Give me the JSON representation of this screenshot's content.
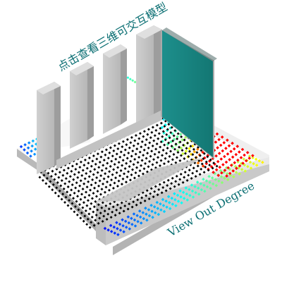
{
  "labels": {
    "top_prompt": "点击查看三维可交互模型",
    "side_label": "View Out Degree"
  },
  "colors": {
    "background": "#ffffff",
    "grid_cell": "#000000",
    "base_top": "#f2f2f2",
    "base_side": "#b8b8b8",
    "wall_front": "#c8c8c8",
    "wall_side": "#9b9b9b",
    "wall_top": "#dddddd",
    "teal_panel": "#167f7a",
    "teal_panel_edge": "#0f6460",
    "heat_low": "#0000ff",
    "heat_mid": "#00ffff",
    "heat_high": "#ffff00",
    "heat_peak": "#ff0000",
    "text": "#0b6f73"
  }
}
